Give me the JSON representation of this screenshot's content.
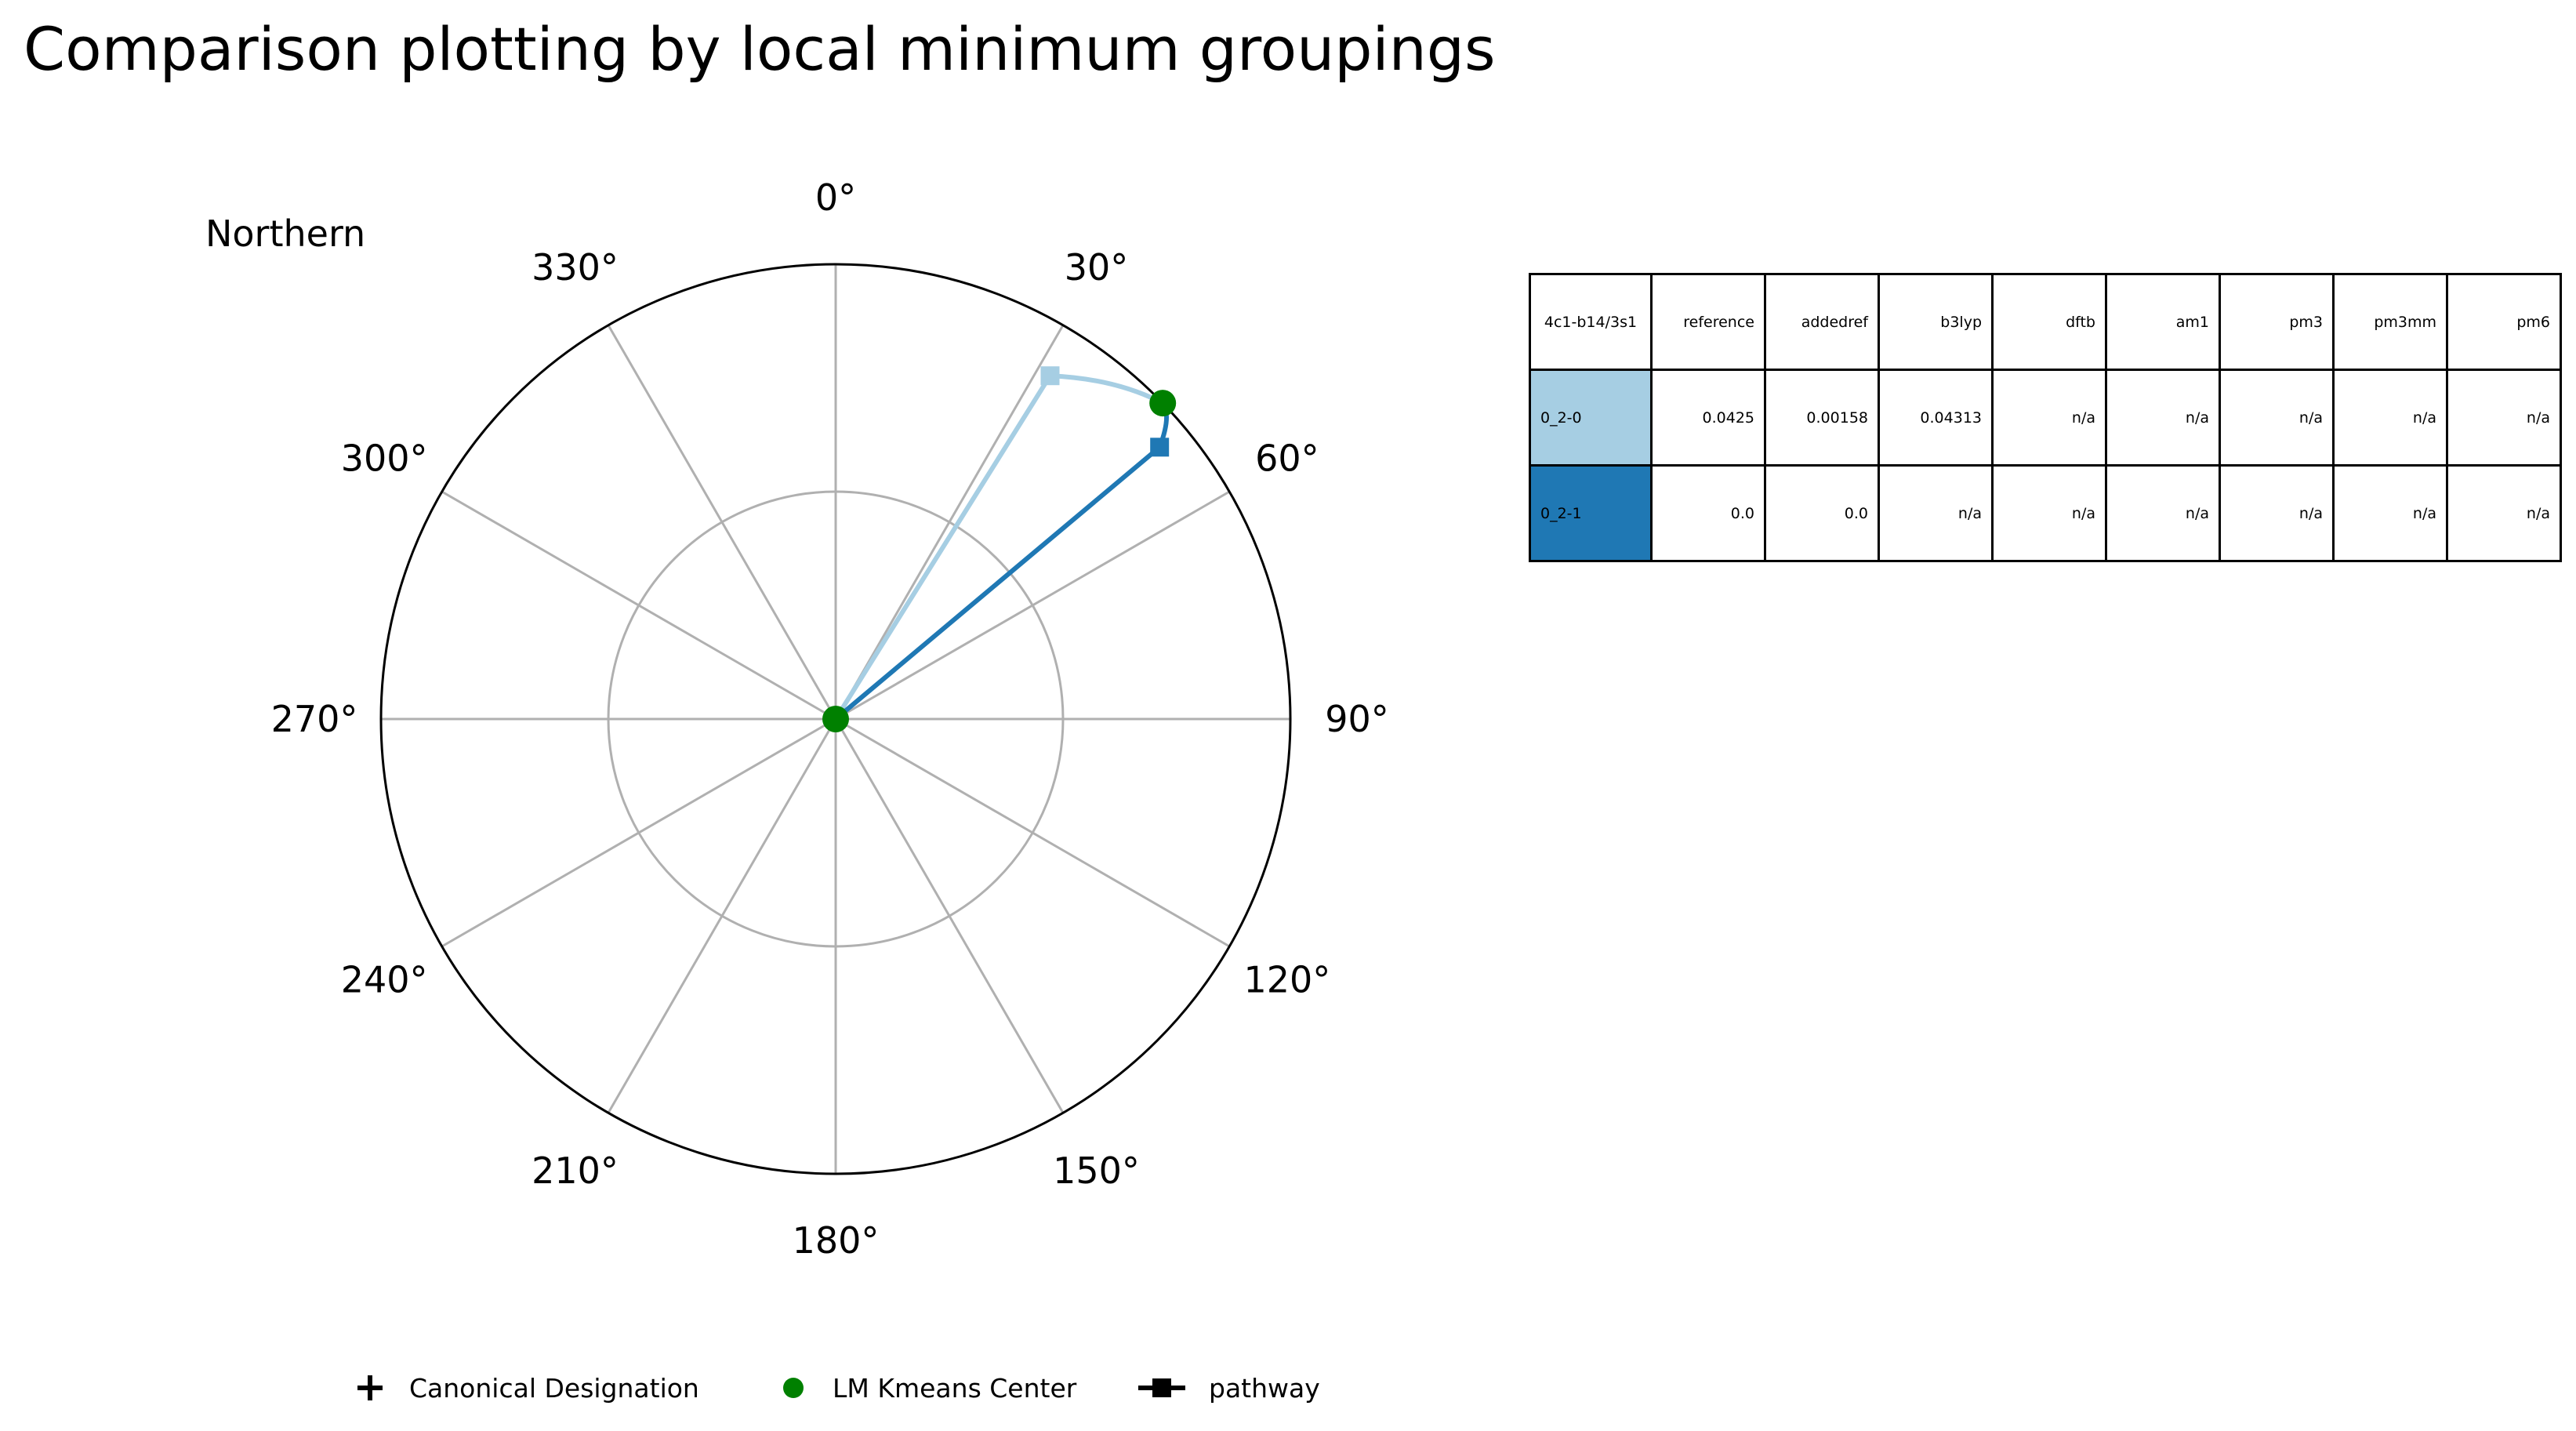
{
  "title": "Comparison plotting by local minimum groupings",
  "chart_data": [
    {
      "type": "polar",
      "hemisphere_label": "Northern",
      "theta_zero": "top",
      "theta_direction": "clockwise",
      "theta_ticks": [
        "0°",
        "30°",
        "60°",
        "90°",
        "120°",
        "150°",
        "180°",
        "210°",
        "240°",
        "270°",
        "300°",
        "330°"
      ],
      "grid": true,
      "r_grid_fraction": 0.5,
      "colors": {
        "pathway_0_2_0": "#a6cee3",
        "pathway_0_2_1": "#1f78b4",
        "kmeans_center": "#008000",
        "grid": "#b0b0b0"
      },
      "kmeans_centers": [
        {
          "theta": 0,
          "r": 0
        },
        {
          "theta": 46,
          "r": 1.0
        }
      ],
      "pathways": [
        {
          "name": "0_2-0",
          "color": "#a6cee3",
          "points": [
            {
              "theta": 0,
              "r": 0
            },
            {
              "theta": 32,
              "r": 0.89
            },
            {
              "theta": 46,
              "r": 1.0
            }
          ]
        },
        {
          "name": "0_2-1",
          "color": "#1f78b4",
          "points": [
            {
              "theta": 0,
              "r": 0
            },
            {
              "theta": 50,
              "r": 0.93
            },
            {
              "theta": 46,
              "r": 1.0
            }
          ]
        }
      ],
      "legend": {
        "placement": "bottom",
        "entries": [
          {
            "marker": "plus",
            "label": "Canonical Designation"
          },
          {
            "marker": "circle",
            "label": "LM Kmeans Center",
            "color": "#008000"
          },
          {
            "marker": "line-square",
            "label": "pathway"
          }
        ]
      }
    },
    {
      "type": "table",
      "columns": [
        "4c1-b14/3s1",
        "reference",
        "addedref",
        "b3lyp",
        "dftb",
        "am1",
        "pm3",
        "pm3mm",
        "pm6"
      ],
      "rows": [
        {
          "label": "0_2-0",
          "color": "#a6cee3",
          "values": [
            "0.0425",
            "0.00158",
            "0.04313",
            "n/a",
            "n/a",
            "n/a",
            "n/a",
            "n/a"
          ]
        },
        {
          "label": "0_2-1",
          "color": "#1f78b4",
          "values": [
            "0.0",
            "0.0",
            "n/a",
            "n/a",
            "n/a",
            "n/a",
            "n/a",
            "n/a"
          ]
        }
      ]
    }
  ]
}
